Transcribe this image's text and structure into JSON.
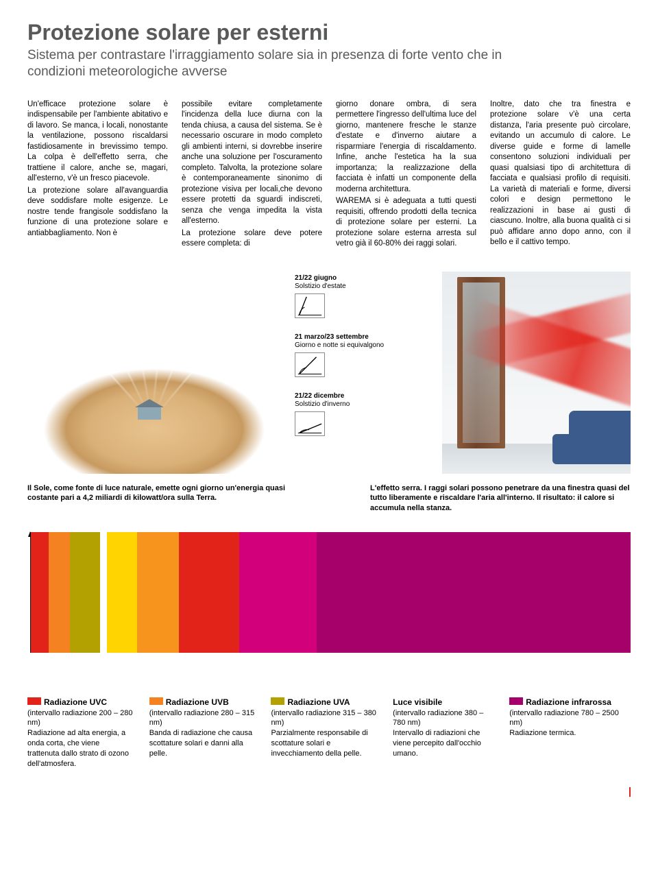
{
  "header": {
    "title": "Protezione solare per esterni",
    "subtitle": "Sistema per contrastare l'irraggiamento solare sia in presenza di forte vento che in condizioni meteorologiche avverse"
  },
  "body_columns": [
    "Un'efficace protezione solare è indispensabile per l'ambiente abitativo e di lavoro. Se manca, i locali, nonostante la ventilazione, possono riscaldarsi fastidiosamente in brevissimo tempo. La colpa è dell'effetto serra, che trattiene il calore, anche se, magari, all'esterno, v'è un fresco piacevole.\nLa protezione solare all'avanguardia deve soddisfare molte esigenze. Le nostre tende frangisole soddisfano la funzione di una protezione solare e antiabbagliamento. Non è",
    "possibile evitare completamente l'incidenza della luce diurna con la tenda chiusa, a causa del sistema. Se è necessario oscurare in modo completo gli ambienti interni, si dovrebbe inserire anche una soluzione per l'oscuramento completo. Talvolta, la protezione solare è contemporaneamente sinonimo di protezione visiva per locali,che devono essere protetti da sguardi indiscreti, senza che venga impedita la vista all'esterno.\nLa protezione solare deve potere essere completa: di",
    "giorno donare ombra, di sera permettere l'ingresso dell'ultima luce del giorno, mantenere fresche le stanze d'estate e d'inverno aiutare a risparmiare l'energia di riscaldamento. Infine, anche l'estetica ha la sua importanza; la realizzazione della facciata è infatti un componente della moderna architettura.\nWAREMA si è adeguata a tutti questi requisiti, offrendo prodotti della tecnica di protezione solare per esterni. La protezione solare esterna arresta sul vetro già il 60-80% dei raggi solari.",
    "Inoltre, dato che tra finestra e protezione solare v'è una certa distanza, l'aria presente può circolare, evitando un accumulo di calore. Le diverse guide e forme di lamelle consentono soluzioni individuali per quasi qualsiasi tipo di architettura di facciata e qualsiasi profilo di requisiti. La varietà di materiali e forme, diversi colori e design permettono le realizzazioni in base ai gusti di ciascuno. Inoltre, alla buona qualità ci si può affidare anno dopo anno, con il bello e il cattivo tempo."
  ],
  "seasons": [
    {
      "date": "21/22 giugno",
      "desc": "Solstizio d'estate",
      "angle_deg": 70
    },
    {
      "date": "21 marzo/23 settembre",
      "desc": "Giorno e notte si equivalgono",
      "angle_deg": 45
    },
    {
      "date": "21/22 dicembre",
      "desc": "Solstizio d'inverno",
      "angle_deg": 20
    }
  ],
  "captions": {
    "left": "Il Sole, come fonte di luce naturale, emette ogni giorno un'energia quasi costante pari a 4,2 miliardi di kilowatt/ora sulla Terra.",
    "right": "L'effetto serra. I raggi solari possono penetrare da una finestra quasi del tutto liberamente e riscaldare l'aria all'interno. Il risultato: il calore si accumula nella stanza."
  },
  "spectrum": {
    "bands": [
      {
        "color": "#e2231a",
        "width_pct": 3.0
      },
      {
        "color": "#f58220",
        "width_pct": 3.5
      },
      {
        "color": "#b2a100",
        "width_pct": 5.0
      },
      {
        "color": "#ffffff",
        "width_pct": 1.2
      },
      {
        "color": "#ffd400",
        "width_pct": 5.0
      },
      {
        "color": "#f7941d",
        "width_pct": 7.0
      },
      {
        "color": "#e2231a",
        "width_pct": 10.0
      },
      {
        "color": "#d2007a",
        "width_pct": 13.0
      },
      {
        "color": "#a6006b",
        "width_pct": 52.3
      }
    ],
    "axis_color": "#000000"
  },
  "radiation": [
    {
      "swatch": "#e2231a",
      "title": "Radiazione UVC",
      "range": "(intervallo radiazione 200 – 280 nm)",
      "desc": "Radiazione ad alta energia, a onda corta, che viene trattenuta dallo strato di ozono dell'atmosfera."
    },
    {
      "swatch": "#f58220",
      "title": "Radiazione UVB",
      "range": "(intervallo radiazione 280 – 315 nm)",
      "desc": "Banda di radiazione che causa scottature solari e danni alla pelle."
    },
    {
      "swatch": "#b2a100",
      "title": "Radiazione UVA",
      "range": "(intervallo radiazione 315 – 380 nm)",
      "desc": "Parzialmente responsabile di scottature solari e invecchiamento della pelle."
    },
    {
      "swatch": "",
      "title": "Luce visibile",
      "range": "(intervallo radiazione 380 – 780 nm)",
      "desc": "Intervallo di radiazioni che viene percepito dall'occhio umano."
    },
    {
      "swatch": "#a6006b",
      "title": "Radiazione infrarossa",
      "range": "(intervallo radiazione 780 – 2500 nm)",
      "desc": "Radiazione termica."
    }
  ],
  "accent_color": "#e2231a"
}
